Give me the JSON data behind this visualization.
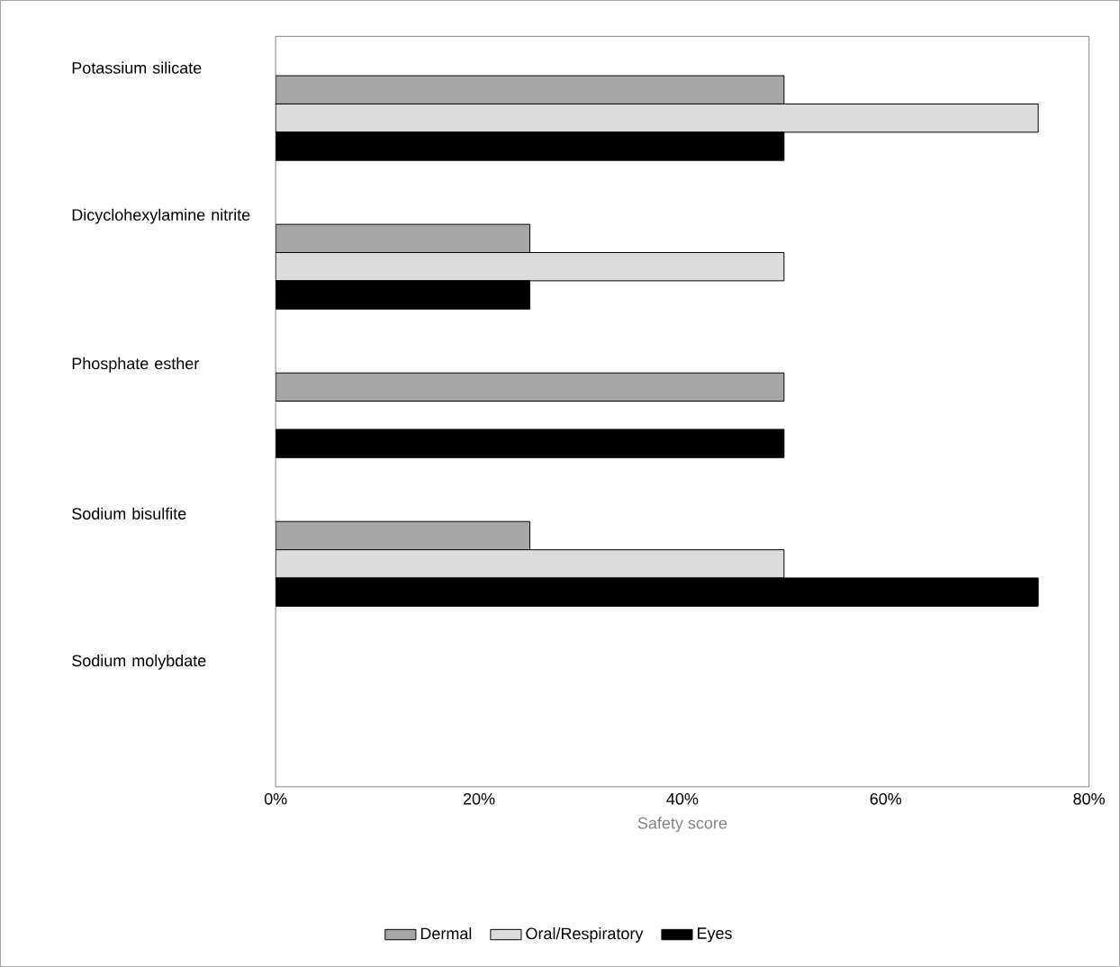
{
  "chart_data": {
    "type": "bar",
    "orientation": "horizontal",
    "xlabel": "Safety score",
    "categories": [
      "Potassium silicate",
      "Dicyclohexylamine nitrite",
      "Phosphate esther",
      "Sodium bisulfite",
      "Sodium molybdate"
    ],
    "series": [
      {
        "name": "Dermal",
        "color": "#a6a6a6",
        "values": [
          50,
          25,
          50,
          25,
          null
        ]
      },
      {
        "name": "Oral/Respiratory",
        "color": "#dcdcdc",
        "values": [
          75,
          50,
          null,
          50,
          null
        ]
      },
      {
        "name": "Eyes",
        "color": "#000000",
        "values": [
          50,
          25,
          50,
          75,
          null
        ]
      }
    ],
    "xlim": [
      0,
      80
    ],
    "xticks": [
      {
        "value": 0,
        "label": "0%"
      },
      {
        "value": 20,
        "label": "20%"
      },
      {
        "value": 40,
        "label": "40%"
      },
      {
        "value": 60,
        "label": "60%"
      },
      {
        "value": 80,
        "label": "80%"
      }
    ],
    "grid": false,
    "legend": "bottom"
  }
}
